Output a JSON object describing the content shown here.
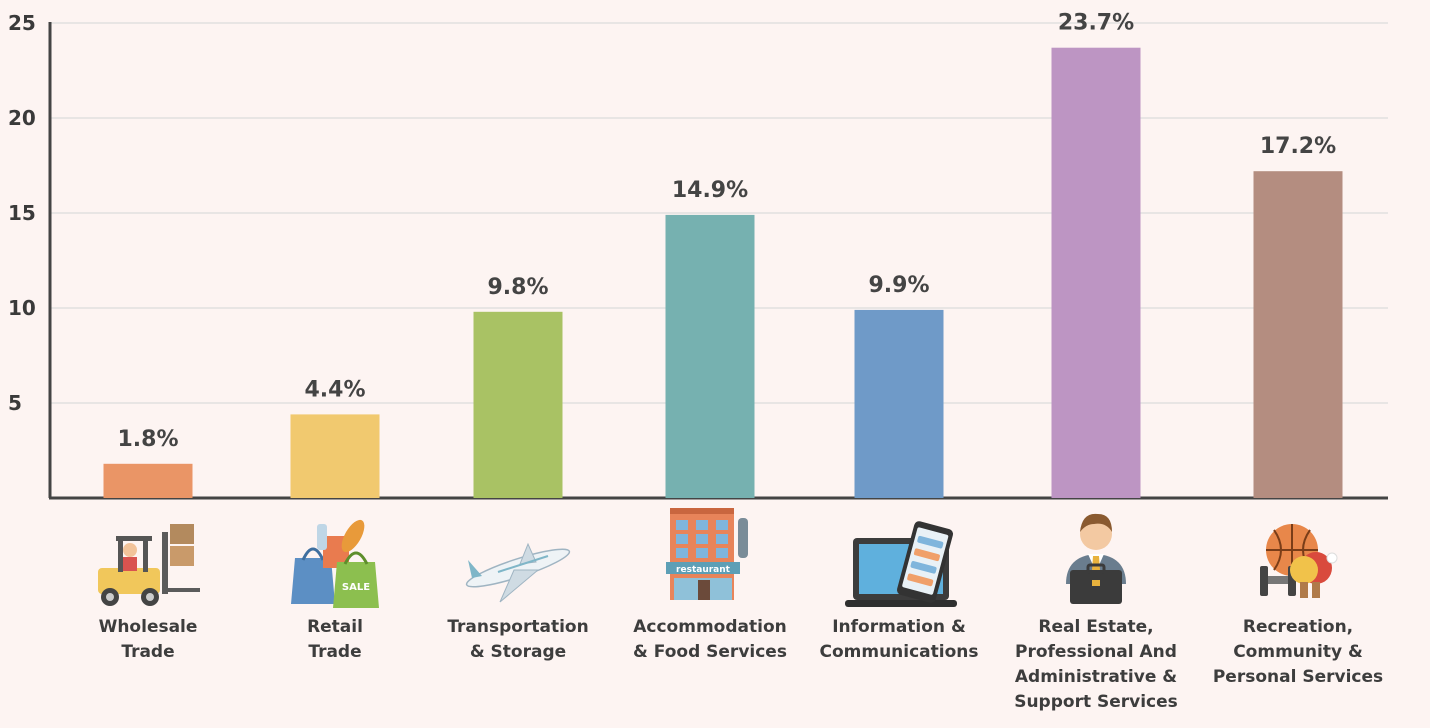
{
  "chart_data": {
    "type": "bar",
    "categories": [
      "Wholesale Trade",
      "Retail Trade",
      "Transportation & Storage",
      "Accommodation & Food Services",
      "Information & Communications",
      "Real Estate, Professional And Administrative & Support Services",
      "Recreation, Community & Personal Services"
    ],
    "category_lines": [
      [
        "Wholesale",
        "Trade"
      ],
      [
        "Retail",
        "Trade"
      ],
      [
        "Transportation",
        "& Storage"
      ],
      [
        "Accommodation",
        "& Food Services"
      ],
      [
        "Information &",
        "Communications"
      ],
      [
        "Real Estate,",
        "Professional And",
        "Administrative &",
        "Support Services"
      ],
      [
        "Recreation,",
        "Community &",
        "Personal Services"
      ]
    ],
    "values": [
      1.8,
      4.4,
      9.8,
      14.9,
      9.9,
      23.7,
      17.2
    ],
    "data_labels": [
      "1.8%",
      "4.4%",
      "9.8%",
      "14.9%",
      "9.9%",
      "23.7%",
      "17.2%"
    ],
    "colors": [
      "#ea9566",
      "#f1c96f",
      "#a9c264",
      "#76b1b0",
      "#6f9ac8",
      "#bd95c3",
      "#b48d80"
    ],
    "icons": [
      "forklift-icon",
      "shopping-bags-icon",
      "airplane-icon",
      "restaurant-building-icon",
      "laptop-phone-icon",
      "businessman-briefcase-icon",
      "sports-equipment-icon"
    ],
    "y_ticks": [
      5,
      10,
      15,
      20,
      25
    ],
    "ylim": [
      0,
      25
    ],
    "grid": true
  }
}
